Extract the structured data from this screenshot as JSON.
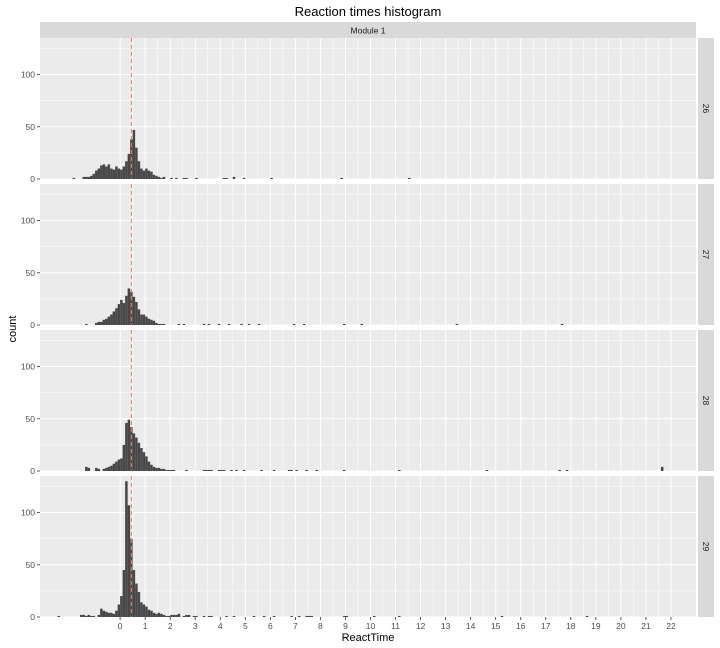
{
  "chart_data": {
    "type": "bar",
    "title": "Reaction times histogram",
    "xlabel": "ReactTime",
    "ylabel": "count",
    "column_strip": "Module 1",
    "xlim": [
      -3.2,
      23.0
    ],
    "ylim": [
      0,
      135
    ],
    "x_ticks": [
      0,
      1,
      2,
      3,
      4,
      5,
      6,
      7,
      8,
      9,
      10,
      11,
      12,
      13,
      14,
      15,
      16,
      17,
      18,
      19,
      20,
      21,
      22
    ],
    "y_ticks": [
      0,
      50,
      100
    ],
    "bin_width": 0.1,
    "reference_line": {
      "x": 0.45,
      "style": "dashed",
      "color": "#f8766d"
    },
    "colors": {
      "bar": "#474747",
      "panel": "#ebebeb",
      "strip": "#d9d9d9",
      "grid": "#ffffff"
    },
    "panels": [
      {
        "label": "26",
        "bins": [
          [
            -1.9,
            1
          ],
          [
            -1.5,
            2
          ],
          [
            -1.4,
            2
          ],
          [
            -1.3,
            2
          ],
          [
            -1.2,
            3
          ],
          [
            -1.1,
            5
          ],
          [
            -1.0,
            8
          ],
          [
            -0.9,
            10
          ],
          [
            -0.8,
            13
          ],
          [
            -0.7,
            14
          ],
          [
            -0.6,
            12
          ],
          [
            -0.5,
            14
          ],
          [
            -0.4,
            10
          ],
          [
            -0.3,
            9
          ],
          [
            -0.2,
            12
          ],
          [
            -0.1,
            10
          ],
          [
            0.0,
            9
          ],
          [
            0.1,
            12
          ],
          [
            0.2,
            17
          ],
          [
            0.3,
            24
          ],
          [
            0.4,
            38
          ],
          [
            0.5,
            47
          ],
          [
            0.6,
            30
          ],
          [
            0.7,
            17
          ],
          [
            0.8,
            10
          ],
          [
            0.9,
            8
          ],
          [
            1.0,
            10
          ],
          [
            1.1,
            8
          ],
          [
            1.2,
            7
          ],
          [
            1.3,
            4
          ],
          [
            1.4,
            3
          ],
          [
            1.5,
            2
          ],
          [
            1.6,
            1
          ],
          [
            1.7,
            2
          ],
          [
            2.0,
            1
          ],
          [
            2.2,
            1
          ],
          [
            2.5,
            1
          ],
          [
            2.6,
            1
          ],
          [
            3.0,
            1
          ],
          [
            4.1,
            1
          ],
          [
            4.2,
            1
          ],
          [
            4.5,
            2
          ],
          [
            4.9,
            1
          ],
          [
            6.0,
            1
          ],
          [
            8.8,
            1
          ],
          [
            11.5,
            1
          ]
        ]
      },
      {
        "label": "27",
        "bins": [
          [
            -1.4,
            1
          ],
          [
            -1.0,
            2
          ],
          [
            -0.9,
            3
          ],
          [
            -0.8,
            3
          ],
          [
            -0.7,
            5
          ],
          [
            -0.6,
            6
          ],
          [
            -0.5,
            8
          ],
          [
            -0.4,
            10
          ],
          [
            -0.3,
            13
          ],
          [
            -0.2,
            16
          ],
          [
            -0.1,
            20
          ],
          [
            0.0,
            24
          ],
          [
            0.1,
            21
          ],
          [
            0.2,
            28
          ],
          [
            0.3,
            35
          ],
          [
            0.4,
            32
          ],
          [
            0.5,
            27
          ],
          [
            0.6,
            22
          ],
          [
            0.7,
            15
          ],
          [
            0.8,
            10
          ],
          [
            0.9,
            10
          ],
          [
            1.0,
            8
          ],
          [
            1.1,
            6
          ],
          [
            1.2,
            5
          ],
          [
            1.3,
            4
          ],
          [
            1.4,
            2
          ],
          [
            1.5,
            1
          ],
          [
            1.6,
            1
          ],
          [
            1.7,
            1
          ],
          [
            2.3,
            1
          ],
          [
            2.5,
            1
          ],
          [
            3.3,
            1
          ],
          [
            3.5,
            1
          ],
          [
            3.9,
            1
          ],
          [
            4.3,
            1
          ],
          [
            4.8,
            1
          ],
          [
            5.1,
            1
          ],
          [
            5.5,
            1
          ],
          [
            6.9,
            1
          ],
          [
            7.3,
            1
          ],
          [
            8.9,
            1
          ],
          [
            9.6,
            1
          ],
          [
            13.4,
            1
          ],
          [
            17.6,
            1
          ]
        ]
      },
      {
        "label": "28",
        "bins": [
          [
            -1.4,
            4
          ],
          [
            -1.3,
            3
          ],
          [
            -1.0,
            3
          ],
          [
            -0.9,
            2
          ],
          [
            -0.7,
            2
          ],
          [
            -0.6,
            3
          ],
          [
            -0.5,
            4
          ],
          [
            -0.4,
            5
          ],
          [
            -0.3,
            7
          ],
          [
            -0.2,
            9
          ],
          [
            -0.1,
            11
          ],
          [
            0.0,
            12
          ],
          [
            0.1,
            25
          ],
          [
            0.2,
            46
          ],
          [
            0.3,
            49
          ],
          [
            0.4,
            42
          ],
          [
            0.5,
            36
          ],
          [
            0.6,
            32
          ],
          [
            0.7,
            27
          ],
          [
            0.8,
            22
          ],
          [
            0.9,
            18
          ],
          [
            1.0,
            14
          ],
          [
            1.1,
            9
          ],
          [
            1.2,
            6
          ],
          [
            1.3,
            4
          ],
          [
            1.4,
            3
          ],
          [
            1.5,
            3
          ],
          [
            1.6,
            2
          ],
          [
            1.7,
            2
          ],
          [
            1.8,
            1
          ],
          [
            1.9,
            1
          ],
          [
            2.0,
            1
          ],
          [
            2.1,
            1
          ],
          [
            2.6,
            1
          ],
          [
            3.3,
            1
          ],
          [
            3.4,
            1
          ],
          [
            3.5,
            1
          ],
          [
            3.6,
            1
          ],
          [
            3.9,
            1
          ],
          [
            4.0,
            1
          ],
          [
            4.1,
            1
          ],
          [
            4.4,
            1
          ],
          [
            4.6,
            1
          ],
          [
            4.9,
            1
          ],
          [
            5.6,
            1
          ],
          [
            6.1,
            1
          ],
          [
            6.7,
            1
          ],
          [
            6.8,
            1
          ],
          [
            7.0,
            1
          ],
          [
            7.4,
            1
          ],
          [
            7.8,
            1
          ],
          [
            8.9,
            1
          ],
          [
            11.1,
            1
          ],
          [
            14.6,
            1
          ],
          [
            17.5,
            1
          ],
          [
            17.8,
            1
          ],
          [
            21.6,
            4
          ]
        ]
      },
      {
        "label": "29",
        "bins": [
          [
            -2.5,
            1
          ],
          [
            -1.6,
            2
          ],
          [
            -1.5,
            2
          ],
          [
            -1.4,
            1
          ],
          [
            -1.3,
            2
          ],
          [
            -1.2,
            1
          ],
          [
            -1.1,
            1
          ],
          [
            -0.9,
            2
          ],
          [
            -0.8,
            8
          ],
          [
            -0.7,
            6
          ],
          [
            -0.6,
            5
          ],
          [
            -0.5,
            4
          ],
          [
            -0.4,
            4
          ],
          [
            -0.3,
            3
          ],
          [
            -0.2,
            6
          ],
          [
            -0.1,
            12
          ],
          [
            0.0,
            20
          ],
          [
            0.1,
            45
          ],
          [
            0.2,
            130
          ],
          [
            0.3,
            107
          ],
          [
            0.4,
            75
          ],
          [
            0.5,
            45
          ],
          [
            0.6,
            32
          ],
          [
            0.7,
            24
          ],
          [
            0.8,
            14
          ],
          [
            0.9,
            12
          ],
          [
            1.0,
            10
          ],
          [
            1.1,
            7
          ],
          [
            1.2,
            6
          ],
          [
            1.3,
            4
          ],
          [
            1.4,
            3
          ],
          [
            1.5,
            4
          ],
          [
            1.6,
            3
          ],
          [
            1.7,
            2
          ],
          [
            1.8,
            1
          ],
          [
            1.9,
            1
          ],
          [
            2.0,
            2
          ],
          [
            2.1,
            2
          ],
          [
            2.2,
            2
          ],
          [
            2.3,
            3
          ],
          [
            2.5,
            1
          ],
          [
            2.6,
            2
          ],
          [
            2.7,
            2
          ],
          [
            2.9,
            1
          ],
          [
            3.0,
            1
          ],
          [
            3.3,
            1
          ],
          [
            3.5,
            1
          ],
          [
            3.6,
            1
          ],
          [
            4.2,
            1
          ],
          [
            4.5,
            1
          ],
          [
            5.3,
            1
          ],
          [
            5.7,
            1
          ],
          [
            6.1,
            1
          ],
          [
            6.8,
            1
          ],
          [
            7.1,
            1
          ],
          [
            7.4,
            1
          ],
          [
            7.5,
            1
          ],
          [
            7.6,
            1
          ],
          [
            8.9,
            1
          ],
          [
            9.0,
            1
          ],
          [
            10.1,
            1
          ],
          [
            11.1,
            1
          ],
          [
            15.2,
            1
          ],
          [
            18.6,
            1
          ]
        ]
      }
    ]
  }
}
